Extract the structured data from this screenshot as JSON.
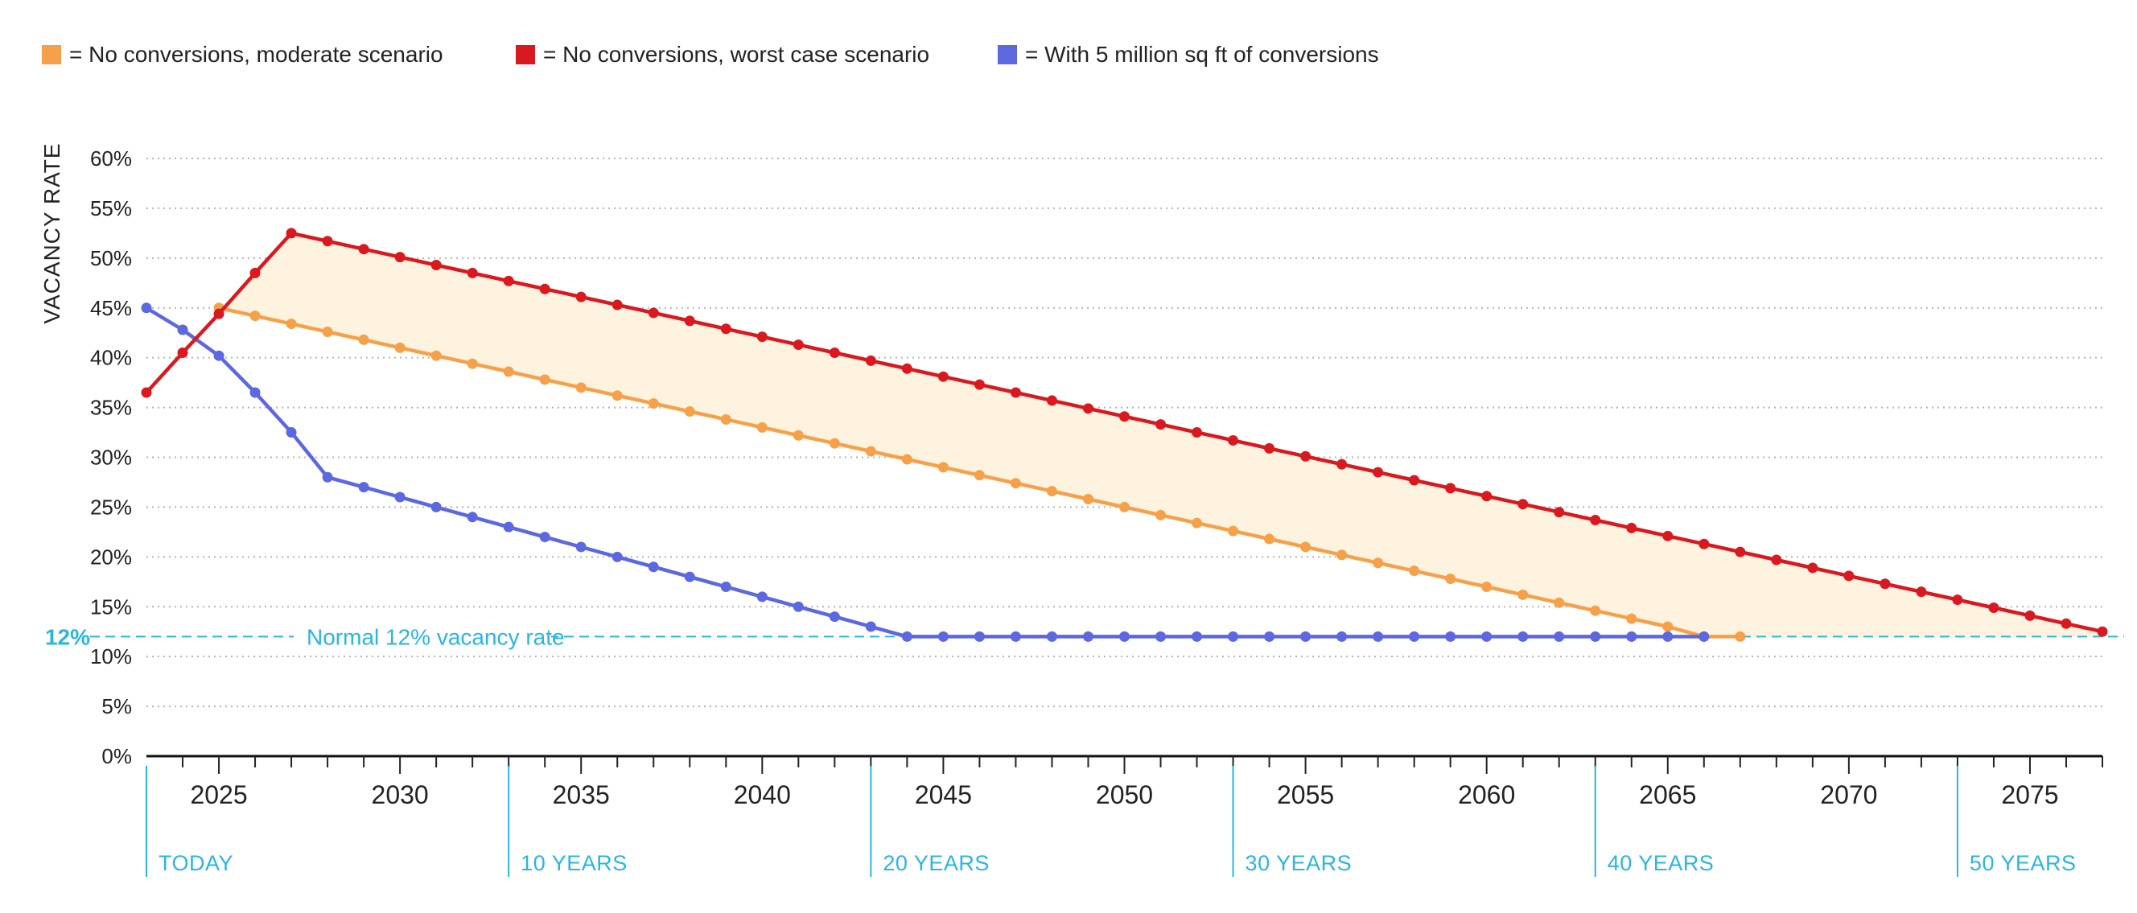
{
  "legend": [
    {
      "label": "= No conversions, moderate scenario",
      "color": "#f7a04a"
    },
    {
      "label": "= No conversions, worst case scenario",
      "color": "#d9191f"
    },
    {
      "label": "= With 5 million sq ft of conversions",
      "color": "#5b68e0"
    }
  ],
  "reference": {
    "value_label": "12%",
    "text": "Normal 12% vacancy rate",
    "value": 12,
    "color": "#2bb5e0"
  },
  "band_color": "#fdf3df",
  "chart_data": {
    "type": "line",
    "title": "",
    "xlabel": "",
    "ylabel": "VACANCY RATE",
    "xlim": [
      2023,
      2077
    ],
    "ylim": [
      0,
      60
    ],
    "y_ticks": [
      "0%",
      "5%",
      "10%",
      "15%",
      "20%",
      "25%",
      "30%",
      "35%",
      "40%",
      "45%",
      "50%",
      "55%",
      "60%"
    ],
    "y_tick_values": [
      0,
      5,
      10,
      15,
      20,
      25,
      30,
      35,
      40,
      45,
      50,
      55,
      60
    ],
    "x_ticks": [
      "2025",
      "2030",
      "2035",
      "2040",
      "2045",
      "2050",
      "2055",
      "2060",
      "2065",
      "2070",
      "2075"
    ],
    "x_tick_values": [
      2025,
      2030,
      2035,
      2040,
      2045,
      2050,
      2055,
      2060,
      2065,
      2070,
      2075
    ],
    "milestones": [
      {
        "year": 2023,
        "label": "TODAY"
      },
      {
        "year": 2033,
        "label": "10 YEARS"
      },
      {
        "year": 2043,
        "label": "20 YEARS"
      },
      {
        "year": 2053,
        "label": "30 YEARS"
      },
      {
        "year": 2063,
        "label": "40 YEARS"
      },
      {
        "year": 2073,
        "label": "50 YEARS"
      }
    ],
    "series": [
      {
        "name": "No conversions, moderate scenario",
        "color": "#f7a04a",
        "x": [
          2025,
          2026,
          2027,
          2028,
          2029,
          2030,
          2031,
          2032,
          2033,
          2034,
          2035,
          2036,
          2037,
          2038,
          2039,
          2040,
          2041,
          2042,
          2043,
          2044,
          2045,
          2046,
          2047,
          2048,
          2049,
          2050,
          2051,
          2052,
          2053,
          2054,
          2055,
          2056,
          2057,
          2058,
          2059,
          2060,
          2061,
          2062,
          2063,
          2064,
          2065,
          2066,
          2067
        ],
        "values": [
          45,
          44.2,
          43.4,
          42.6,
          41.8,
          41,
          40.2,
          39.4,
          38.6,
          37.8,
          37,
          36.2,
          35.4,
          34.6,
          33.8,
          33,
          32.2,
          31.4,
          30.6,
          29.8,
          29,
          28.2,
          27.4,
          26.6,
          25.8,
          25,
          24.2,
          23.4,
          22.6,
          21.8,
          21,
          20.2,
          19.4,
          18.6,
          17.8,
          17,
          16.2,
          15.4,
          14.6,
          13.8,
          13,
          12,
          12
        ]
      },
      {
        "name": "No conversions, worst case scenario",
        "color": "#d9191f",
        "x": [
          2023,
          2024,
          2025,
          2026,
          2027,
          2028,
          2029,
          2030,
          2031,
          2032,
          2033,
          2034,
          2035,
          2036,
          2037,
          2038,
          2039,
          2040,
          2041,
          2042,
          2043,
          2044,
          2045,
          2046,
          2047,
          2048,
          2049,
          2050,
          2051,
          2052,
          2053,
          2054,
          2055,
          2056,
          2057,
          2058,
          2059,
          2060,
          2061,
          2062,
          2063,
          2064,
          2065,
          2066,
          2067,
          2068,
          2069,
          2070,
          2071,
          2072,
          2073,
          2074,
          2075,
          2076,
          2077
        ],
        "values": [
          36.5,
          40.5,
          44.4,
          48.5,
          52.5,
          51.7,
          50.9,
          50.1,
          49.3,
          48.5,
          47.7,
          46.9,
          46.1,
          45.3,
          44.5,
          43.7,
          42.9,
          42.1,
          41.3,
          40.5,
          39.7,
          38.9,
          38.1,
          37.3,
          36.5,
          35.7,
          34.9,
          34.1,
          33.3,
          32.5,
          31.7,
          30.9,
          30.1,
          29.3,
          28.5,
          27.7,
          26.9,
          26.1,
          25.3,
          24.5,
          23.7,
          22.9,
          22.1,
          21.3,
          20.5,
          19.7,
          18.9,
          18.1,
          17.3,
          16.5,
          15.7,
          14.9,
          14.1,
          13.3,
          12.5
        ]
      },
      {
        "name": "With 5 million sq ft of conversions",
        "color": "#5b68e0",
        "x": [
          2023,
          2024,
          2025,
          2026,
          2027,
          2028,
          2029,
          2030,
          2031,
          2032,
          2033,
          2034,
          2035,
          2036,
          2037,
          2038,
          2039,
          2040,
          2041,
          2042,
          2043,
          2044,
          2045,
          2046,
          2047,
          2048,
          2049,
          2050,
          2051,
          2052,
          2053,
          2054,
          2055,
          2056,
          2057,
          2058,
          2059,
          2060,
          2061,
          2062,
          2063,
          2064,
          2065,
          2066
        ],
        "values": [
          45,
          42.8,
          40.2,
          36.5,
          32.5,
          28,
          27,
          26,
          25,
          24,
          23,
          22,
          21,
          20,
          19,
          18,
          17,
          16,
          15,
          14,
          13,
          12,
          12,
          12,
          12,
          12,
          12,
          12,
          12,
          12,
          12,
          12,
          12,
          12,
          12,
          12,
          12,
          12,
          12,
          12,
          12,
          12,
          12,
          12
        ]
      }
    ]
  }
}
